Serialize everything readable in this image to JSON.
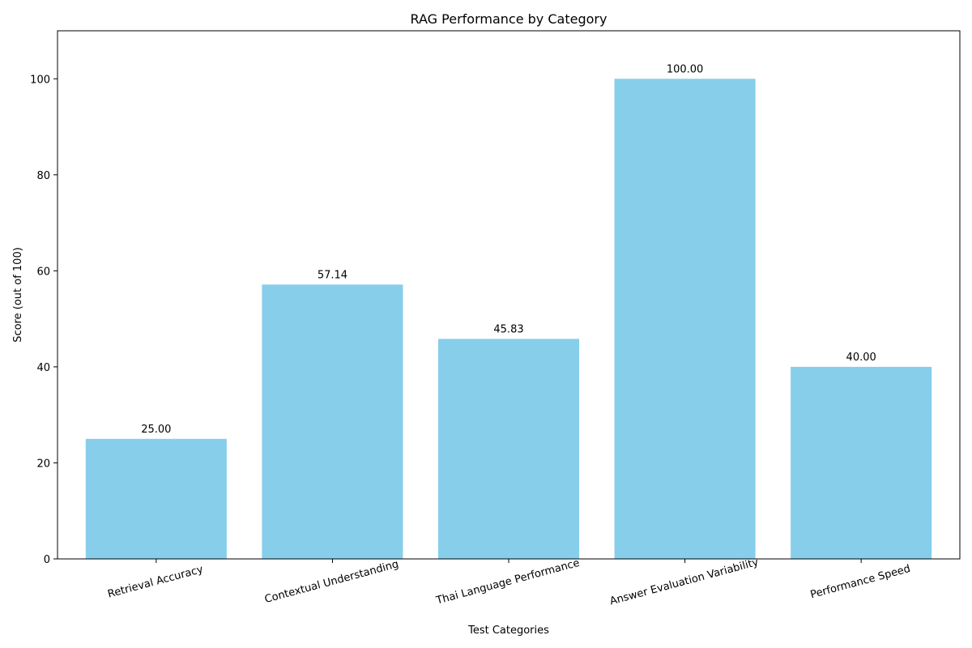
{
  "chart_data": {
    "type": "bar",
    "title": "RAG Performance by Category",
    "xlabel": "Test Categories",
    "ylabel": "Score (out of 100)",
    "categories": [
      "Retrieval Accuracy",
      "Contextual Understanding",
      "Thai Language Performance",
      "Answer Evaluation Variability",
      "Performance Speed"
    ],
    "values": [
      25.0,
      57.14,
      45.83,
      100.0,
      40.0
    ],
    "value_labels": [
      "25.00",
      "57.14",
      "45.83",
      "100.00",
      "40.00"
    ],
    "ylim": [
      0,
      110
    ],
    "yticks": [
      0,
      20,
      40,
      60,
      80,
      100
    ],
    "bar_color": "#87ceeb",
    "grid": false,
    "legend": false
  }
}
